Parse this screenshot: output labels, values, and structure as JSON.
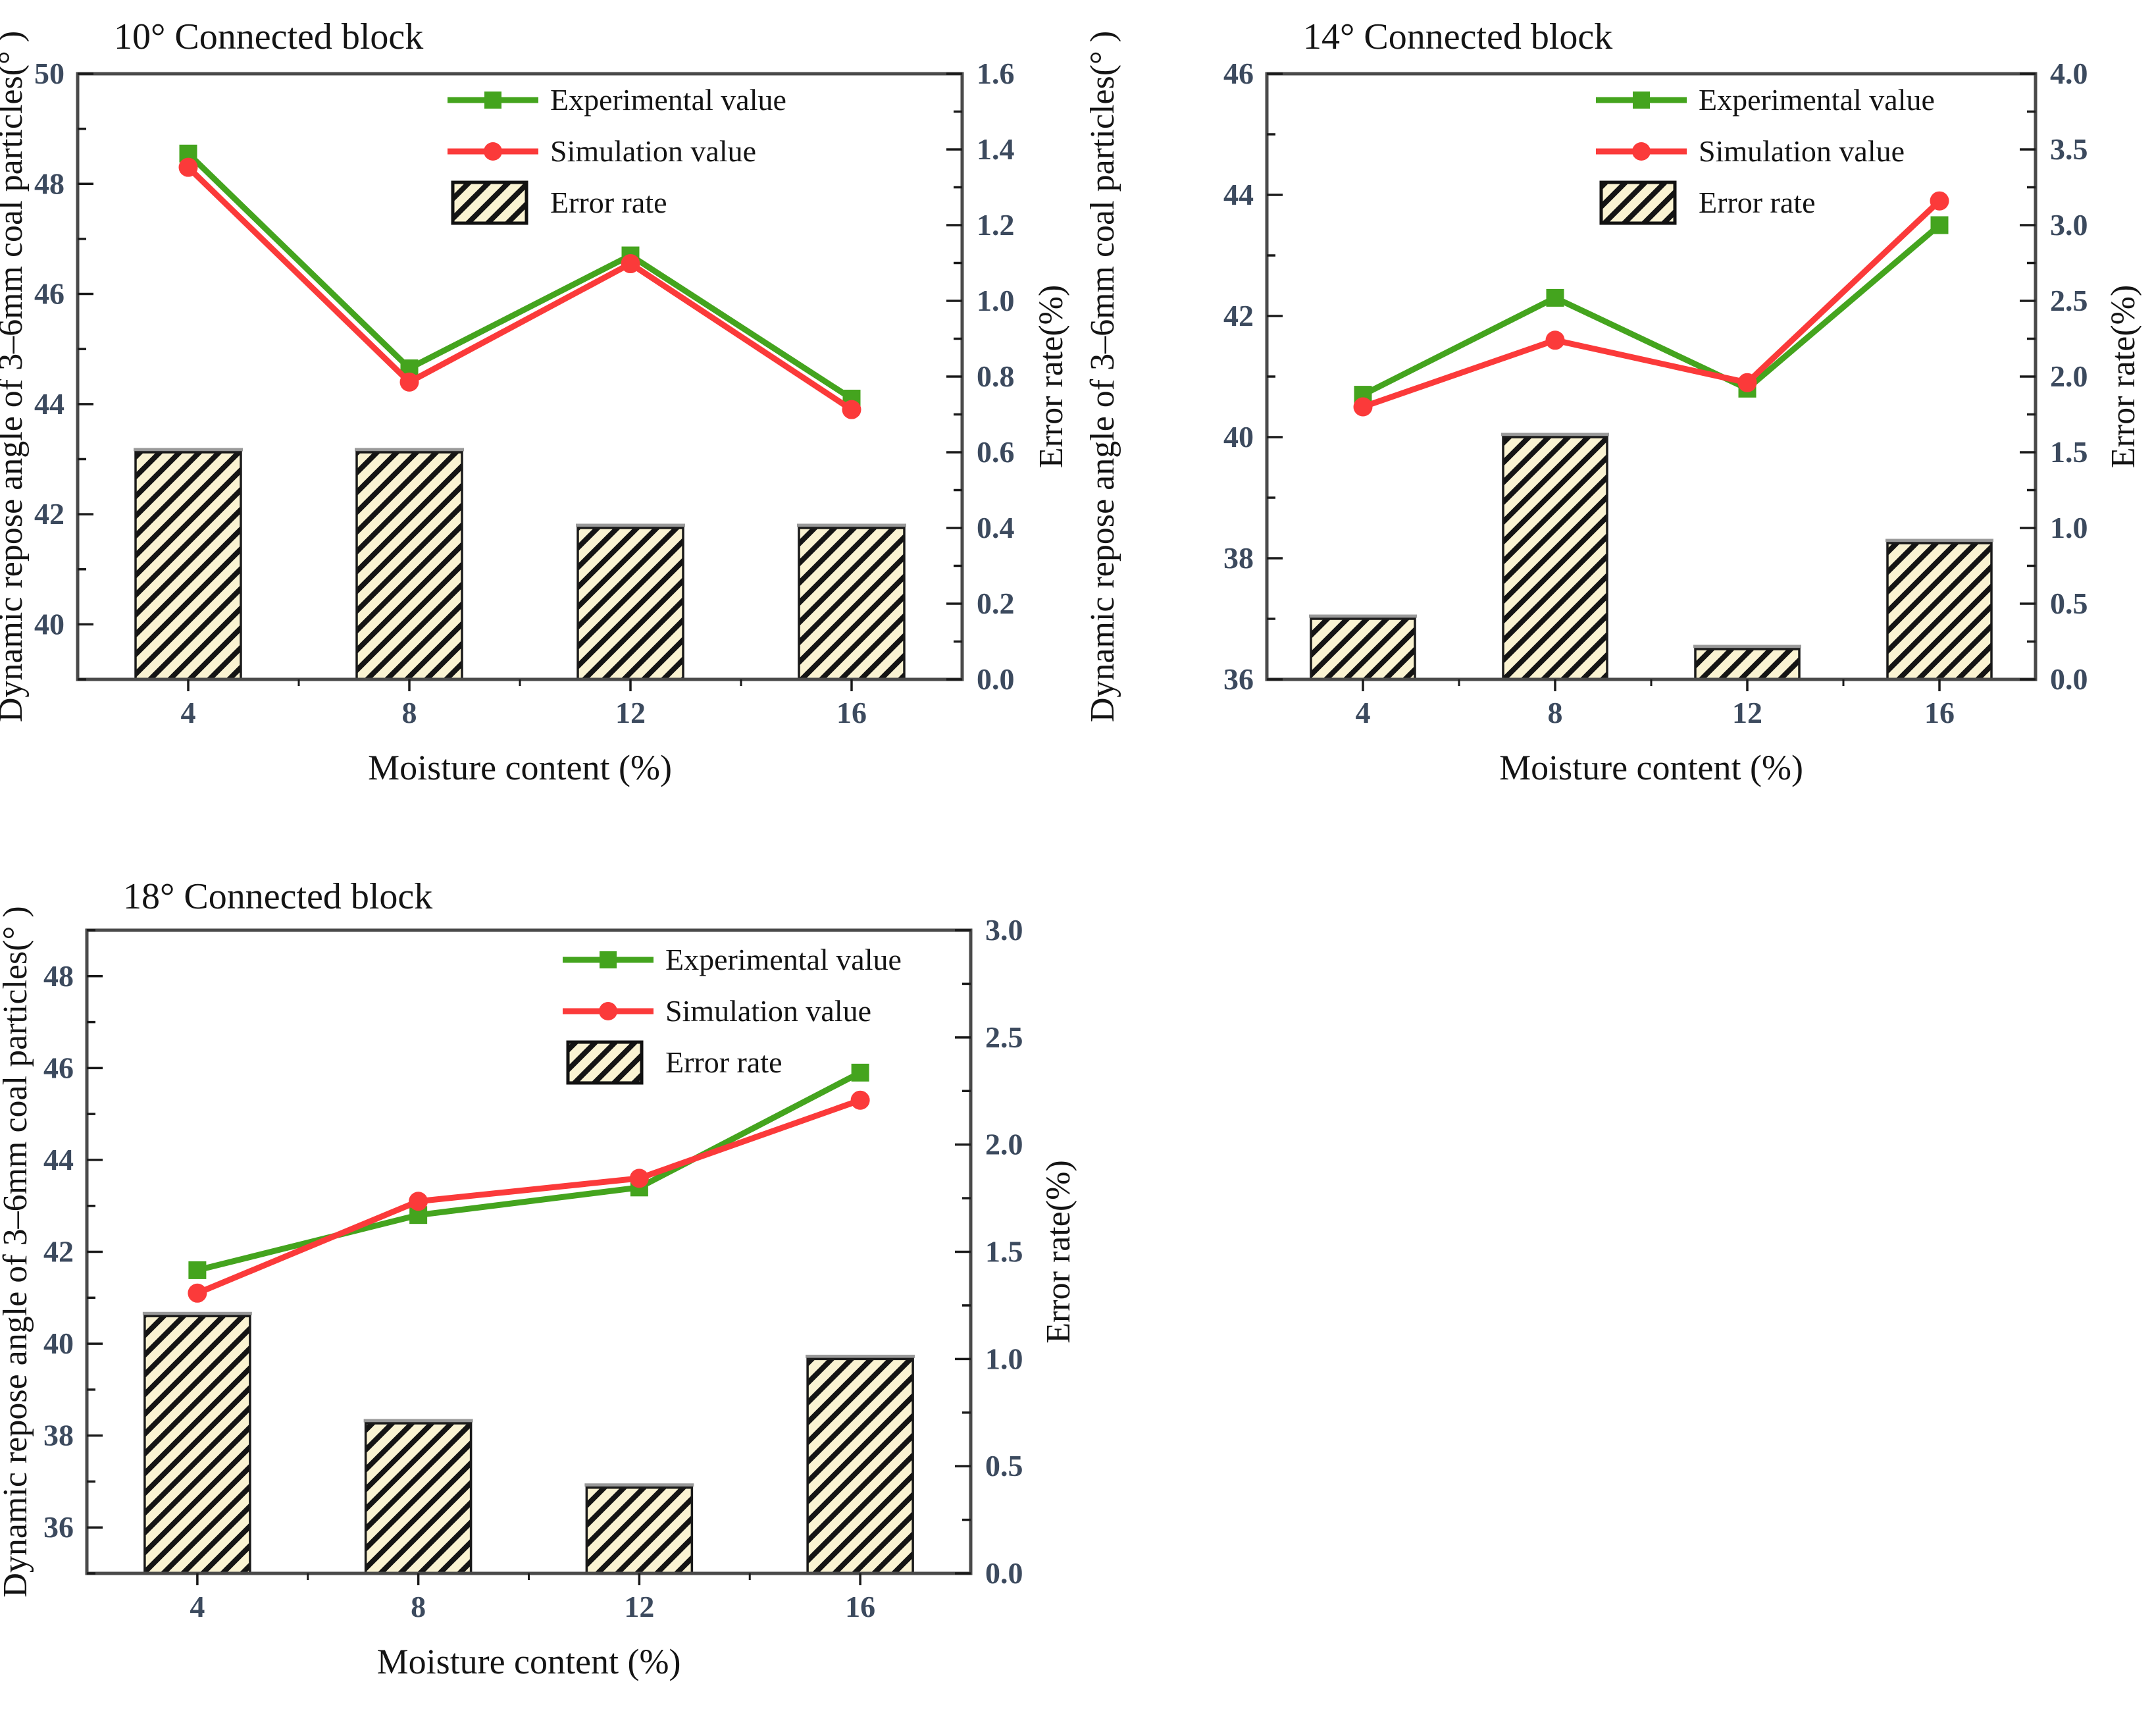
{
  "colors": {
    "experimental": "#44a41e",
    "simulation": "#fb3a3a",
    "bar_fill": "#faf3d2",
    "bar_hatch": "#141414",
    "bar_edge": "#1a1a1a",
    "bar_top_shadow": "#9a9a9a",
    "frame": "#4a4a4a",
    "tick_text": "#3c4a5e",
    "label_text": "#141414"
  },
  "shared": {
    "xlabel": "Moisture content (%)",
    "left_ylabel": "Dynamic repose angle of 3–6mm coal particles(° )",
    "right_ylabel": "Error rate(%)",
    "legend": [
      "Experimental value",
      "Simulation value",
      "Error rate"
    ]
  },
  "chart_data": [
    {
      "type": "line+bar",
      "title": "10° Connected block",
      "xlabel": "Moisture content (%)",
      "left_ylabel": "Dynamic repose angle of 3–6mm coal particles(° )",
      "right_ylabel": "Error rate(%)",
      "categories": [
        4,
        8,
        12,
        16
      ],
      "left_ylim": [
        39,
        50
      ],
      "left_major_step": 2,
      "left_minor_step": 1,
      "right_ylim": [
        0,
        1.6
      ],
      "right_major_step": 0.2,
      "right_minor_step": 0.1,
      "right_decimals": 1,
      "grid": false,
      "legend_position": "upper-center",
      "series": [
        {
          "name": "Experimental value",
          "kind": "line",
          "axis": "left",
          "marker": "square",
          "color_key": "experimental",
          "values": [
            48.55,
            44.65,
            46.7,
            44.1
          ]
        },
        {
          "name": "Simulation value",
          "kind": "line",
          "axis": "left",
          "marker": "circle",
          "color_key": "simulation",
          "values": [
            48.3,
            44.4,
            46.55,
            43.9
          ]
        },
        {
          "name": "Error rate",
          "kind": "bar",
          "axis": "right",
          "values": [
            0.6,
            0.6,
            0.4,
            0.4
          ]
        }
      ]
    },
    {
      "type": "line+bar",
      "title": "14° Connected block",
      "xlabel": "Moisture content (%)",
      "left_ylabel": "Dynamic repose angle of 3–6mm coal particles(° )",
      "right_ylabel": "Error rate(%)",
      "categories": [
        4,
        8,
        12,
        16
      ],
      "left_ylim": [
        36,
        46
      ],
      "left_major_step": 2,
      "left_minor_step": 1,
      "right_ylim": [
        0,
        4.0
      ],
      "right_major_step": 0.5,
      "right_minor_step": 0.25,
      "right_decimals": 1,
      "grid": false,
      "legend_position": "upper-right",
      "series": [
        {
          "name": "Experimental value",
          "kind": "line",
          "axis": "left",
          "marker": "square",
          "color_key": "experimental",
          "values": [
            40.7,
            42.3,
            40.8,
            43.5
          ]
        },
        {
          "name": "Simulation value",
          "kind": "line",
          "axis": "left",
          "marker": "circle",
          "color_key": "simulation",
          "values": [
            40.5,
            41.6,
            40.9,
            43.9
          ]
        },
        {
          "name": "Error rate",
          "kind": "bar",
          "axis": "right",
          "values": [
            0.4,
            1.6,
            0.2,
            0.9
          ]
        }
      ]
    },
    {
      "type": "line+bar",
      "title": "18° Connected block",
      "xlabel": "Moisture content (%)",
      "left_ylabel": "Dynamic repose angle of 3–6mm coal particles(° )",
      "right_ylabel": "Error rate(%)",
      "categories": [
        4,
        8,
        12,
        16
      ],
      "left_ylim": [
        35,
        49
      ],
      "left_major_step": 2,
      "left_minor_step": 1,
      "right_ylim": [
        0,
        3.0
      ],
      "right_major_step": 0.5,
      "right_minor_step": 0.25,
      "right_decimals": 1,
      "grid": false,
      "legend_position": "upper-center",
      "series": [
        {
          "name": "Experimental value",
          "kind": "line",
          "axis": "left",
          "marker": "square",
          "color_key": "experimental",
          "values": [
            41.6,
            42.8,
            43.4,
            45.9
          ]
        },
        {
          "name": "Simulation value",
          "kind": "line",
          "axis": "left",
          "marker": "circle",
          "color_key": "simulation",
          "values": [
            41.1,
            43.1,
            43.6,
            45.3
          ]
        },
        {
          "name": "Error rate",
          "kind": "bar",
          "axis": "right",
          "values": [
            1.2,
            0.7,
            0.4,
            1.0
          ]
        }
      ]
    }
  ]
}
